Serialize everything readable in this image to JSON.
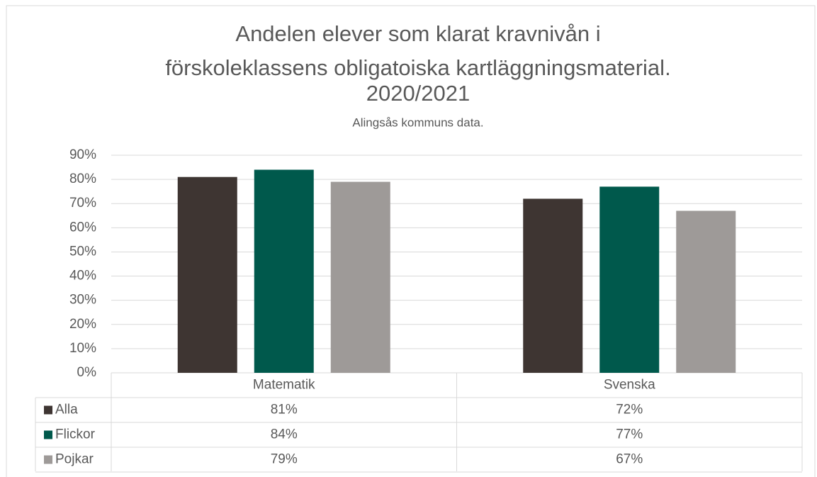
{
  "chart_data": {
    "type": "bar",
    "title": [
      "Andelen elever som klarat kravnivån i",
      "förskoleklassens obligatoiska kartläggningsmaterial.",
      "2020/2021"
    ],
    "subtitle": "Alingsås kommuns data.",
    "categories": [
      "Matematik",
      "Svenska"
    ],
    "series": [
      {
        "name": "Alla",
        "color": "#3e3532",
        "values": [
          81,
          72
        ],
        "value_labels": [
          "81%",
          "72%"
        ]
      },
      {
        "name": "Flickor",
        "color": "#00594c",
        "values": [
          84,
          77
        ],
        "value_labels": [
          "84%",
          "77%"
        ]
      },
      {
        "name": "Pojkar",
        "color": "#9e9a98",
        "values": [
          79,
          67
        ],
        "value_labels": [
          "79%",
          "67%"
        ]
      }
    ],
    "ylim": [
      0,
      90
    ],
    "yticks": [
      {
        "value": 0,
        "label": "0%"
      },
      {
        "value": 10,
        "label": "10%"
      },
      {
        "value": 20,
        "label": "20%"
      },
      {
        "value": 30,
        "label": "30%"
      },
      {
        "value": 40,
        "label": "40%"
      },
      {
        "value": 50,
        "label": "50%"
      },
      {
        "value": 60,
        "label": "60%"
      },
      {
        "value": 70,
        "label": "70%"
      },
      {
        "value": 80,
        "label": "80%"
      },
      {
        "value": 90,
        "label": "90%"
      }
    ],
    "grid": true,
    "legend": "table"
  }
}
